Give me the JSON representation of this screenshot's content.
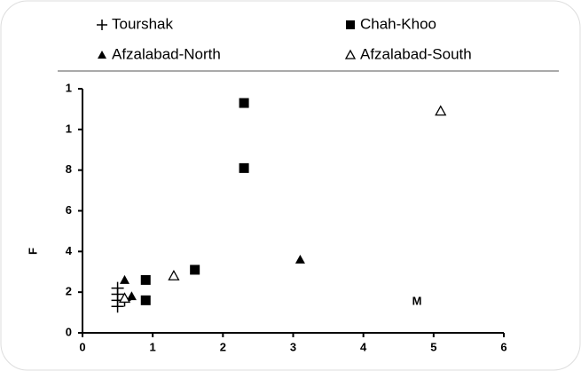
{
  "chart_data": {
    "type": "scatter",
    "xlabel": "M",
    "ylabel": "F",
    "xlim": [
      0,
      6
    ],
    "xticks": [
      0,
      1,
      2,
      3,
      4,
      5,
      6
    ],
    "ylim": [
      0,
      12
    ],
    "yticks": [
      0,
      2,
      4,
      6,
      8,
      {
        "value": 10,
        "label": "1"
      },
      {
        "value": 12,
        "label": "1"
      }
    ],
    "series": [
      {
        "name": "Tourshak",
        "marker": "plus",
        "color": "#000000",
        "x": [
          0.5,
          0.5,
          0.5,
          0.5,
          0.6
        ],
        "y": [
          1.3,
          1.6,
          1.9,
          2.2,
          1.6
        ]
      },
      {
        "name": "Chah-Khoo",
        "marker": "square",
        "color": "#000000",
        "x": [
          0.9,
          0.9,
          1.6,
          2.3,
          2.3
        ],
        "y": [
          1.6,
          2.6,
          3.1,
          8.1,
          11.3
        ]
      },
      {
        "name": "Afzalabad-North",
        "marker": "triangle",
        "color": "#000000",
        "x": [
          0.6,
          0.7,
          3.1
        ],
        "y": [
          2.6,
          1.8,
          3.6
        ]
      },
      {
        "name": "Afzalabad-South",
        "marker": "triangle-open",
        "color": "#000000",
        "x": [
          0.6,
          1.3,
          5.1
        ],
        "y": [
          1.7,
          2.8,
          10.9
        ]
      }
    ]
  }
}
